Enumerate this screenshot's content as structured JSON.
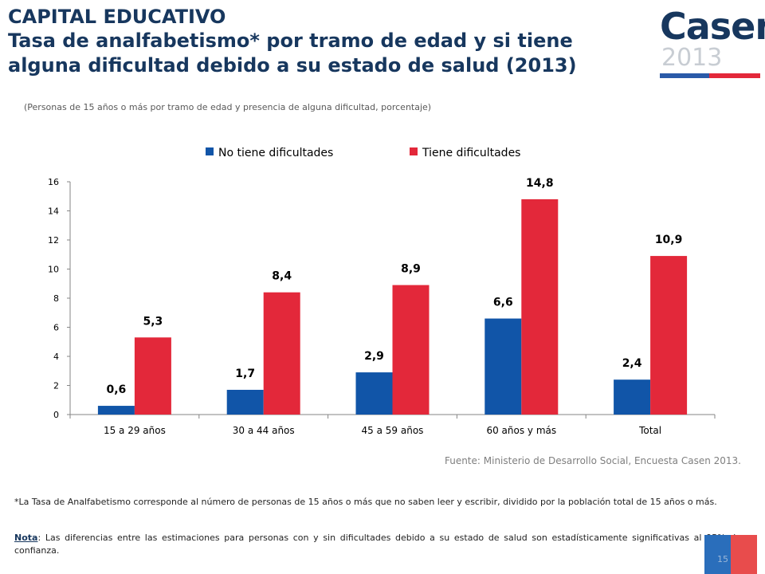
{
  "header": {
    "line1": "CAPITAL EDUCATIVO",
    "line2": "Tasa de analfabetismo* por tramo de edad y si tiene",
    "line3": "alguna dificultad debido a su estado de salud (2013)"
  },
  "logo": {
    "word": "Casen",
    "year": "2013"
  },
  "subtitle": "(Personas de 15 años o más por tramo de edad y presencia de alguna dificultad, porcentaje)",
  "chart_data": {
    "type": "bar",
    "categories": [
      "15 a 29 años",
      "30 a 44 años",
      "45 a 59 años",
      "60 años y más",
      "Total"
    ],
    "series": [
      {
        "name": "No tiene dificultades",
        "color": "#1155a8",
        "values": [
          0.6,
          1.7,
          2.9,
          6.6,
          2.4
        ],
        "labels": [
          "0,6",
          "1,7",
          "2,9",
          "6,6",
          "2,4"
        ]
      },
      {
        "name": "Tiene dificultades",
        "color": "#e3283a",
        "values": [
          5.3,
          8.4,
          8.9,
          14.8,
          10.9
        ],
        "labels": [
          "5,3",
          "8,4",
          "8,9",
          "14,8",
          "10,9"
        ]
      }
    ],
    "ylim": [
      0,
      16
    ],
    "yticks": [
      "0",
      "2",
      "4",
      "6",
      "8",
      "10",
      "12",
      "14",
      "16"
    ],
    "legend_position": "top",
    "grid": false
  },
  "source": "Fuente: Ministerio de Desarrollo Social, Encuesta Casen 2013.",
  "footnote1": "*La Tasa de Analfabetismo corresponde al número de personas de 15 años o más que no saben leer y escribir, dividido por la población total de 15 años o más.",
  "footnote2": {
    "label": "Nota",
    "text": ": Las diferencias entre las estimaciones para personas con y sin dificultades debido a su estado de salud son estadísticamente significativas al 95% de confianza."
  },
  "page_number": "15",
  "colors": {
    "navy": "#17375e",
    "blue": "#1155a8",
    "red": "#e3283a"
  }
}
